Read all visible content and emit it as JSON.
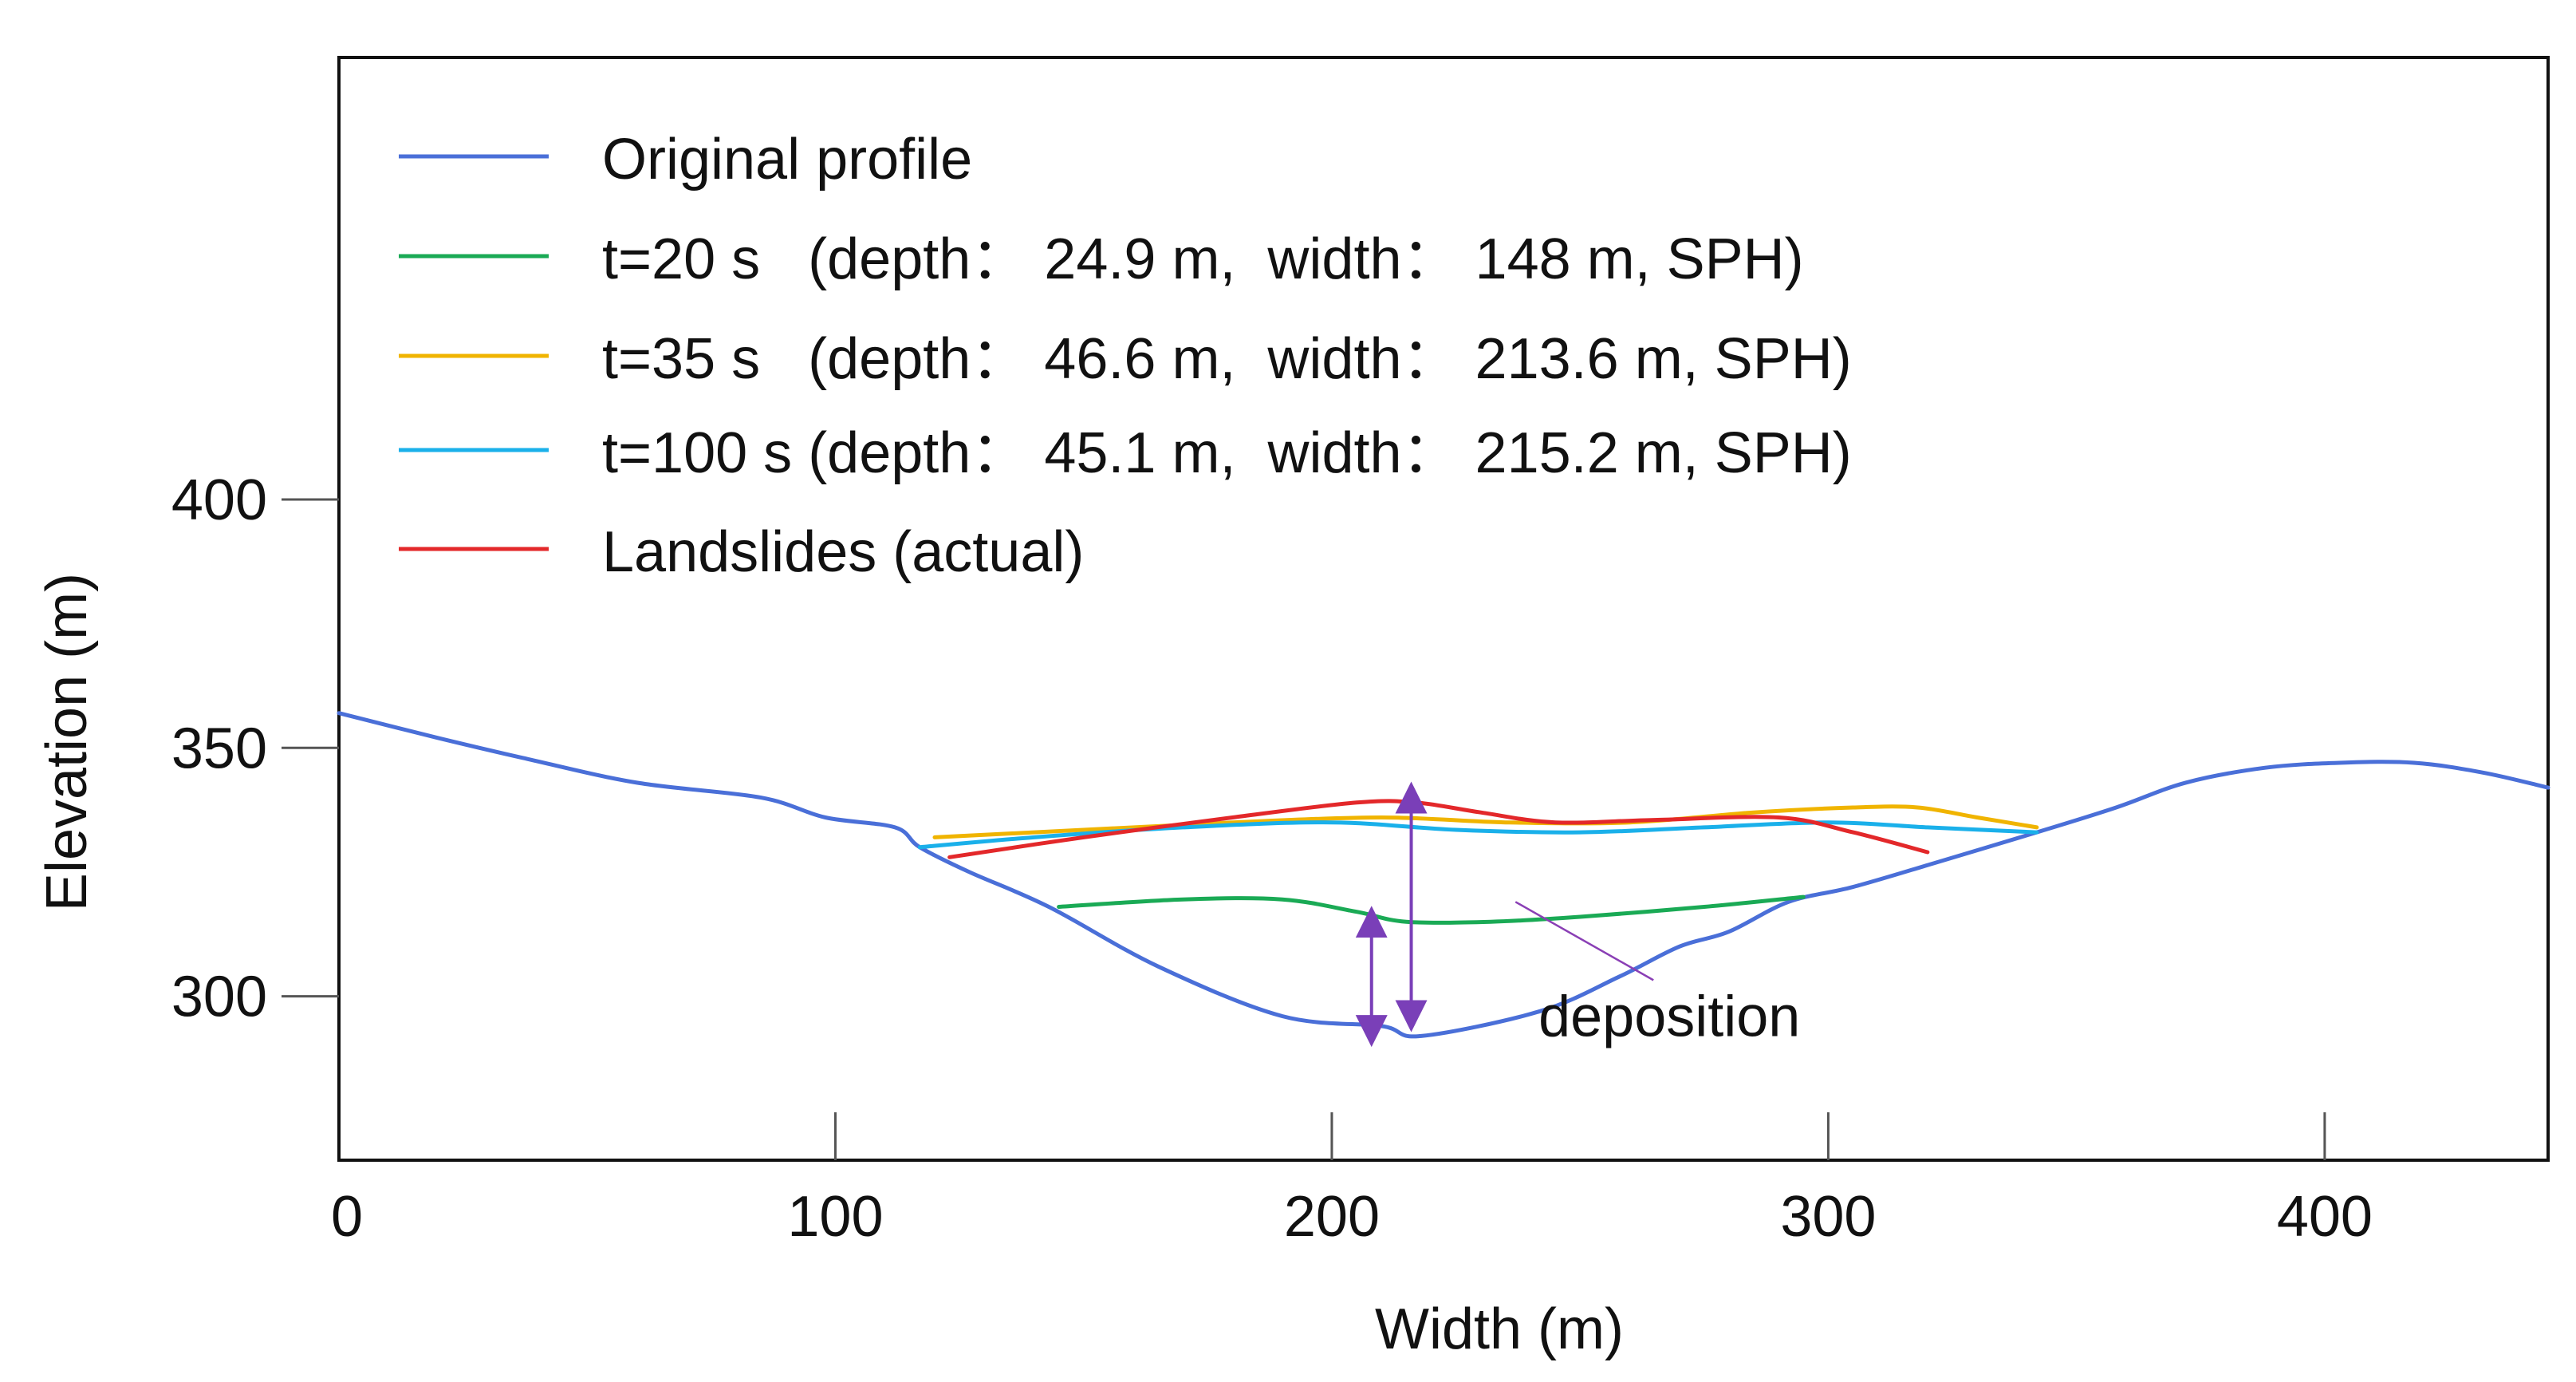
{
  "chart_data": {
    "type": "line",
    "title": "",
    "xlabel": "Width (m)",
    "ylabel": "Elevation (m)",
    "xlim": [
      0,
      445
    ],
    "ylim": [
      267,
      489
    ],
    "x_ticks": [
      0,
      100,
      200,
      300,
      400
    ],
    "y_ticks": [
      300,
      350,
      400
    ],
    "x_tick_labels": [
      "0",
      "100",
      "200",
      "300",
      "400"
    ],
    "y_tick_labels": [
      "300",
      "350",
      "400"
    ],
    "grid": false,
    "legend_position": "top-left",
    "series": [
      {
        "name": "Original profile",
        "color": "#4a6fd8",
        "x": [
          0,
          20,
          37,
          60,
          85,
          98,
          112,
          117,
          127,
          143,
          165,
          190,
          210,
          218,
          242,
          258,
          270,
          280,
          292,
          305,
          322,
          342,
          358,
          372,
          388,
          403,
          418,
          432,
          445
        ],
        "y": [
          357,
          352,
          348,
          343,
          340,
          336,
          334,
          330,
          325,
          318,
          306,
          296,
          294,
          292,
          297,
          304,
          310,
          313,
          319,
          322,
          327,
          333,
          338,
          343,
          346,
          347,
          347,
          345,
          342
        ]
      },
      {
        "name": "t=20 s   (depth： 24.9 m,  width： 148 m, SPH)",
        "color": "#1aaa55",
        "x": [
          145,
          170,
          190,
          205,
          215,
          232,
          250,
          275,
          295
        ],
        "y": [
          318,
          319.5,
          319.5,
          317,
          315,
          315,
          316,
          318,
          320
        ]
      },
      {
        "name": "t=35 s   (depth： 46.6 m,  width： 213.6 m, SPH)",
        "color": "#f0b400",
        "x": [
          120,
          150,
          180,
          210,
          235,
          260,
          285,
          305,
          318,
          330,
          342
        ],
        "y": [
          332,
          333.5,
          335,
          336,
          335,
          335,
          337,
          338,
          338,
          336,
          334
        ]
      },
      {
        "name": "t=100 s (depth： 45.1 m,  width： 215.2 m, SPH)",
        "color": "#1ab0ea",
        "x": [
          117,
          140,
          170,
          200,
          225,
          250,
          275,
          300,
          320,
          342
        ],
        "y": [
          330,
          332,
          334,
          335,
          333.5,
          333,
          334,
          335,
          334,
          333
        ]
      },
      {
        "name": "Landslides (actual)",
        "color": "#e3282a",
        "x": [
          123,
          150,
          180,
          205,
          217,
          230,
          245,
          265,
          290,
          305,
          320
        ],
        "y": [
          328,
          332,
          336,
          339,
          339,
          337,
          335,
          335.5,
          336,
          333,
          329
        ]
      }
    ],
    "annotations": [
      {
        "text": "deposition",
        "x": 268,
        "y": 292,
        "arrow_to": [
          237,
          319
        ]
      }
    ],
    "depth_arrows": [
      {
        "x": 208,
        "y_from": 293,
        "y_to": 315
      },
      {
        "x": 216,
        "y_from": 296,
        "y_to": 340
      }
    ],
    "arrow_color": "#7a3fb8",
    "annotation_line_color": "#8a3fb5"
  }
}
